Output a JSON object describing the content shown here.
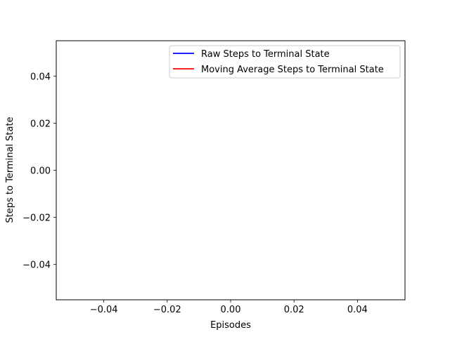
{
  "chart_data": {
    "type": "line",
    "title": "",
    "xlabel": "Episodes",
    "ylabel": "Steps to Terminal State",
    "xlim": [
      -0.055,
      0.055
    ],
    "ylim": [
      -0.055,
      0.055
    ],
    "xticks": [
      -0.04,
      -0.02,
      0.0,
      0.02,
      0.04
    ],
    "yticks": [
      -0.04,
      -0.02,
      0.0,
      0.02,
      0.04
    ],
    "xtick_labels": [
      "−0.04",
      "−0.02",
      "0.00",
      "0.02",
      "0.04"
    ],
    "ytick_labels": [
      "−0.04",
      "−0.02",
      "0.00",
      "0.02",
      "0.04"
    ],
    "grid": false,
    "legend_position": "upper right",
    "series": [
      {
        "name": "Raw Steps to Terminal State",
        "color": "#0000ff",
        "x": [],
        "y": []
      },
      {
        "name": "Moving Average Steps to Terminal State",
        "color": "#ff0000",
        "x": [],
        "y": []
      }
    ]
  }
}
